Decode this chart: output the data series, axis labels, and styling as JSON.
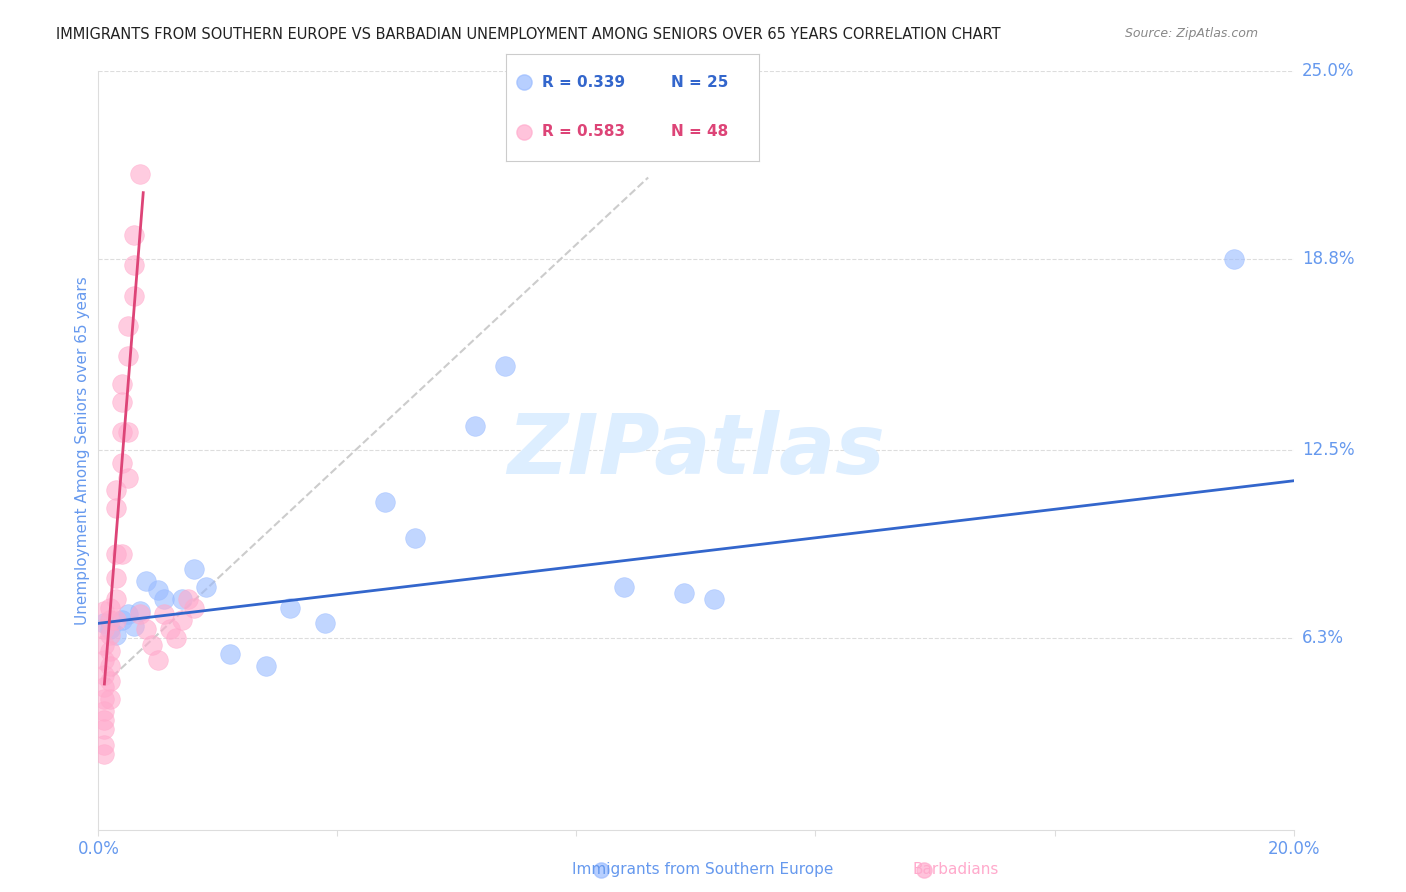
{
  "title": "IMMIGRANTS FROM SOUTHERN EUROPE VS BARBADIAN UNEMPLOYMENT AMONG SENIORS OVER 65 YEARS CORRELATION CHART",
  "source": "Source: ZipAtlas.com",
  "xlabel_blue": "Immigrants from Southern Europe",
  "xlabel_pink": "Barbadians",
  "ylabel": "Unemployment Among Seniors over 65 years",
  "xlim": [
    0.0,
    0.2
  ],
  "ylim": [
    0.0,
    0.25
  ],
  "ytick_labels": [
    "6.3%",
    "12.5%",
    "18.8%",
    "25.0%"
  ],
  "ytick_values": [
    0.063,
    0.125,
    0.188,
    0.25
  ],
  "xtick_labels": [
    "0.0%",
    "",
    "",
    "",
    "",
    "20.0%"
  ],
  "xtick_values": [
    0.0,
    0.04,
    0.08,
    0.12,
    0.16,
    0.2
  ],
  "legend_blue_R": "R = 0.339",
  "legend_blue_N": "N = 25",
  "legend_pink_R": "R = 0.583",
  "legend_pink_N": "N = 48",
  "blue_color": "#99bbff",
  "pink_color": "#ffaacc",
  "blue_line_color": "#3366cc",
  "pink_line_color": "#dd4477",
  "title_color": "#333333",
  "axis_label_color": "#6699ee",
  "watermark_color": "#ddeeff",
  "blue_scatter": [
    [
      0.001,
      0.068
    ],
    [
      0.002,
      0.066
    ],
    [
      0.003,
      0.064
    ],
    [
      0.004,
      0.069
    ],
    [
      0.005,
      0.071
    ],
    [
      0.006,
      0.067
    ],
    [
      0.007,
      0.072
    ],
    [
      0.008,
      0.082
    ],
    [
      0.01,
      0.079
    ],
    [
      0.011,
      0.076
    ],
    [
      0.014,
      0.076
    ],
    [
      0.016,
      0.086
    ],
    [
      0.018,
      0.08
    ],
    [
      0.022,
      0.058
    ],
    [
      0.028,
      0.054
    ],
    [
      0.032,
      0.073
    ],
    [
      0.038,
      0.068
    ],
    [
      0.048,
      0.108
    ],
    [
      0.053,
      0.096
    ],
    [
      0.063,
      0.133
    ],
    [
      0.068,
      0.153
    ],
    [
      0.088,
      0.08
    ],
    [
      0.098,
      0.078
    ],
    [
      0.103,
      0.076
    ],
    [
      0.19,
      0.188
    ]
  ],
  "pink_scatter": [
    [
      0.001,
      0.072
    ],
    [
      0.001,
      0.066
    ],
    [
      0.001,
      0.061
    ],
    [
      0.001,
      0.056
    ],
    [
      0.001,
      0.051
    ],
    [
      0.001,
      0.047
    ],
    [
      0.001,
      0.043
    ],
    [
      0.001,
      0.039
    ],
    [
      0.001,
      0.036
    ],
    [
      0.001,
      0.033
    ],
    [
      0.001,
      0.028
    ],
    [
      0.001,
      0.025
    ],
    [
      0.002,
      0.073
    ],
    [
      0.002,
      0.069
    ],
    [
      0.002,
      0.064
    ],
    [
      0.002,
      0.059
    ],
    [
      0.002,
      0.054
    ],
    [
      0.002,
      0.049
    ],
    [
      0.002,
      0.043
    ],
    [
      0.003,
      0.112
    ],
    [
      0.003,
      0.106
    ],
    [
      0.003,
      0.091
    ],
    [
      0.003,
      0.083
    ],
    [
      0.003,
      0.076
    ],
    [
      0.003,
      0.069
    ],
    [
      0.004,
      0.147
    ],
    [
      0.004,
      0.141
    ],
    [
      0.004,
      0.131
    ],
    [
      0.004,
      0.121
    ],
    [
      0.004,
      0.091
    ],
    [
      0.005,
      0.166
    ],
    [
      0.005,
      0.156
    ],
    [
      0.005,
      0.131
    ],
    [
      0.005,
      0.116
    ],
    [
      0.006,
      0.196
    ],
    [
      0.006,
      0.186
    ],
    [
      0.006,
      0.176
    ],
    [
      0.007,
      0.216
    ],
    [
      0.007,
      0.071
    ],
    [
      0.008,
      0.066
    ],
    [
      0.009,
      0.061
    ],
    [
      0.01,
      0.056
    ],
    [
      0.011,
      0.071
    ],
    [
      0.012,
      0.066
    ],
    [
      0.013,
      0.063
    ],
    [
      0.014,
      0.069
    ],
    [
      0.015,
      0.076
    ],
    [
      0.016,
      0.073
    ]
  ],
  "blue_line_x": [
    0.0,
    0.2
  ],
  "blue_line_y": [
    0.068,
    0.115
  ],
  "pink_line_x": [
    0.001,
    0.0075
  ],
  "pink_line_y": [
    0.048,
    0.21
  ],
  "gray_line_x": [
    0.001,
    0.092
  ],
  "gray_line_y": [
    0.048,
    0.215
  ]
}
